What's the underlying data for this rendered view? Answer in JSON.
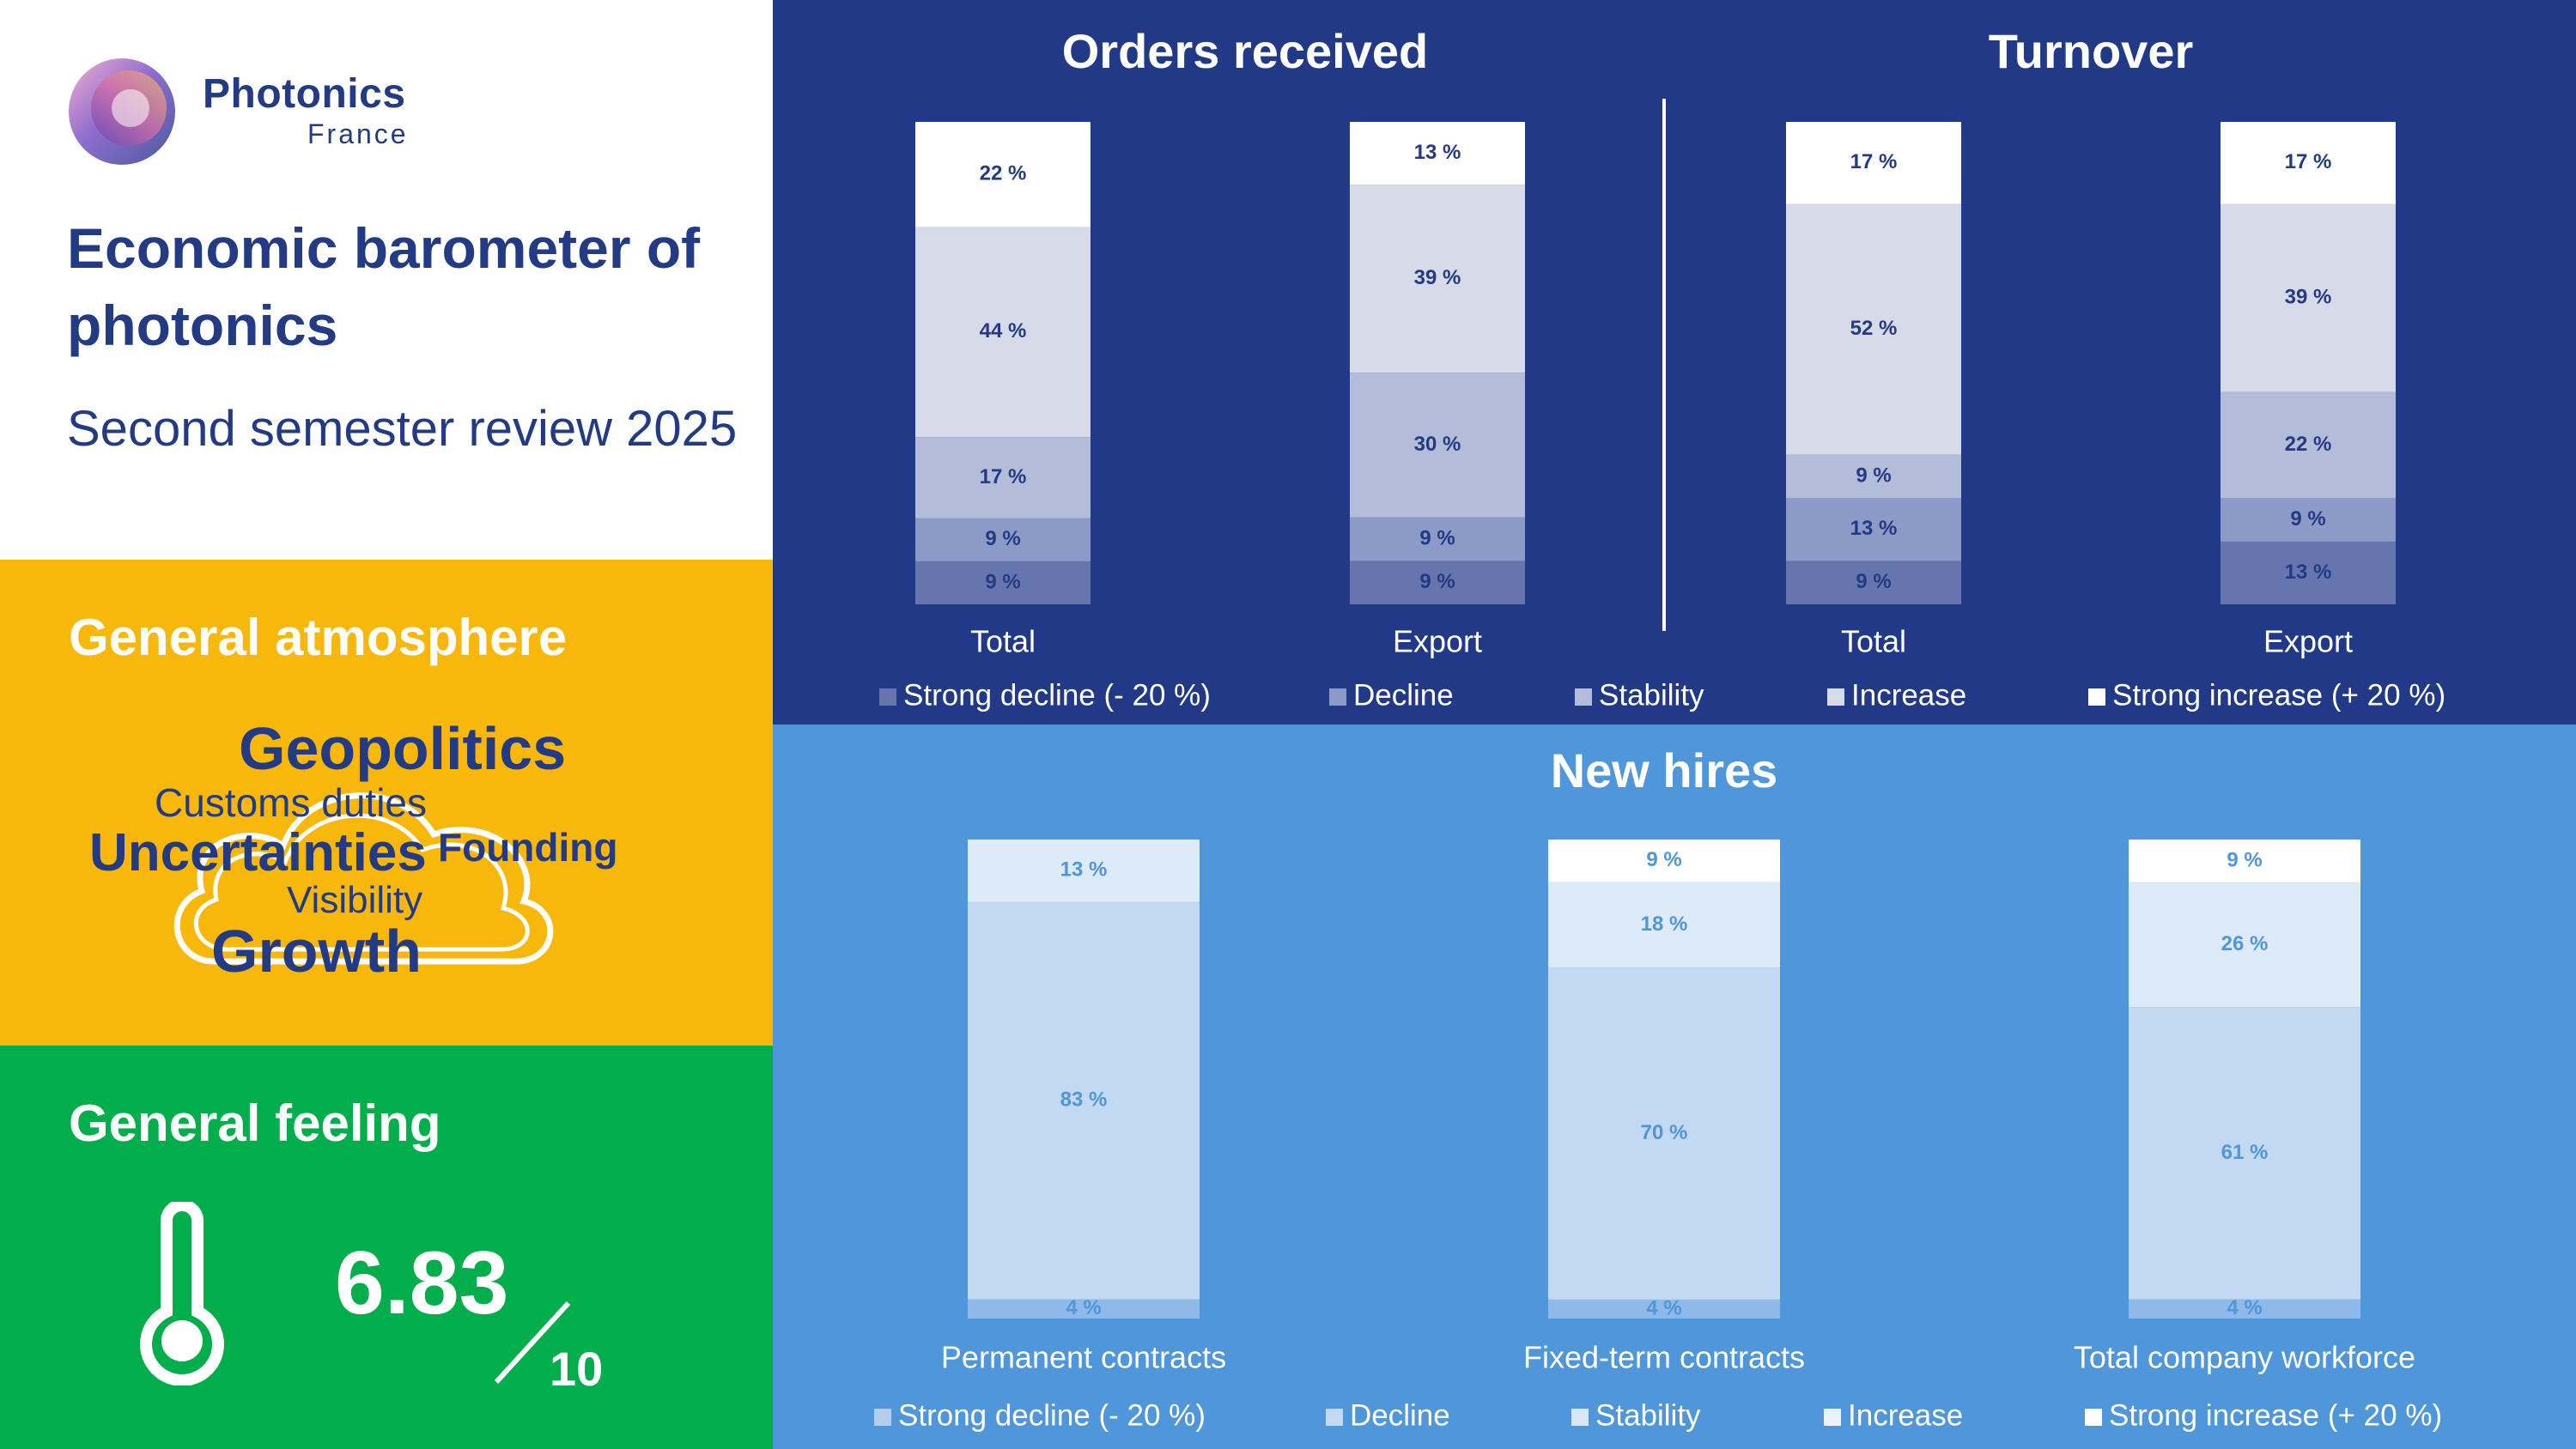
{
  "header": {
    "logo_name": "Photonics",
    "logo_sub": "France",
    "title": "Economic barometer of photonics",
    "subtitle": "Second semester review 2025"
  },
  "atmosphere": {
    "title": "General atmosphere",
    "words": {
      "geopolitics": "Geopolitics",
      "customs": "Customs duties",
      "uncertainties": "Uncertainties",
      "founding": "Founding",
      "visibility": "Visibility",
      "growth": "Growth"
    }
  },
  "feeling": {
    "title": "General feeling",
    "score": "6.83",
    "max": "10",
    "icon": "thermometer-icon"
  },
  "colors": {
    "top_panel": "#213986",
    "bottom_panel": "#4f96da",
    "yellow": "#f8b70b",
    "green": "#02ae4b",
    "navy_text": "#233a84"
  },
  "chart_data": [
    {
      "type": "bar",
      "stacked": true,
      "title": "Orders received",
      "categories": [
        "Total",
        "Export"
      ],
      "series": [
        {
          "name": "Strong decline (- 20 %)",
          "values": [
            9,
            9
          ]
        },
        {
          "name": "Decline",
          "values": [
            9,
            9
          ]
        },
        {
          "name": "Stability",
          "values": [
            17,
            30
          ]
        },
        {
          "name": "Increase",
          "values": [
            44,
            39
          ]
        },
        {
          "name": "Strong increase (+ 20 %)",
          "values": [
            22,
            13
          ]
        }
      ],
      "unit": "%",
      "legend": "bottom"
    },
    {
      "type": "bar",
      "stacked": true,
      "title": "Turnover",
      "categories": [
        "Total",
        "Export"
      ],
      "series": [
        {
          "name": "Strong decline (- 20 %)",
          "values": [
            9,
            13
          ]
        },
        {
          "name": "Decline",
          "values": [
            13,
            9
          ]
        },
        {
          "name": "Stability",
          "values": [
            9,
            22
          ]
        },
        {
          "name": "Increase",
          "values": [
            52,
            39
          ]
        },
        {
          "name": "Strong increase (+ 20 %)",
          "values": [
            17,
            17
          ]
        }
      ],
      "unit": "%",
      "legend": "bottom"
    },
    {
      "type": "bar",
      "stacked": true,
      "title": "New hires",
      "categories": [
        "Permanent contracts",
        "Fixed-term contracts",
        "Total company workforce"
      ],
      "series": [
        {
          "name": "Strong decline (- 20 %)",
          "values": [
            null,
            null,
            null
          ]
        },
        {
          "name": "Decline",
          "values": [
            4,
            4,
            4
          ]
        },
        {
          "name": "Stability",
          "values": [
            83,
            70,
            61
          ]
        },
        {
          "name": "Increase",
          "values": [
            13,
            18,
            26
          ]
        },
        {
          "name": "Strong increase (+ 20 %)",
          "values": [
            null,
            9,
            9
          ]
        }
      ],
      "unit": "%",
      "legend": "bottom"
    }
  ],
  "legend_top": [
    "Strong decline (- 20 %)",
    "Decline",
    "Stability",
    "Increase",
    "Strong increase (+ 20 %)"
  ],
  "legend_bottom": [
    "Strong decline (- 20 %)",
    "Decline",
    "Stability",
    "Increase",
    "Strong increase (+ 20 %)"
  ]
}
